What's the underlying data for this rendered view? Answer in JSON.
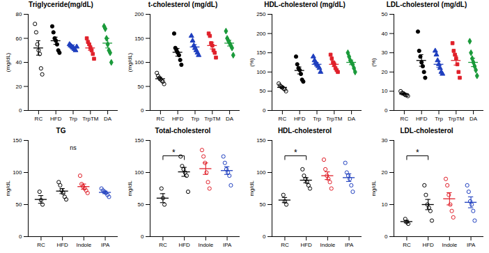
{
  "chart_data": [
    {
      "type": "scatter",
      "title": "Triglyceride(mg/dL)",
      "y_label": "(mg/dL)",
      "categories": [
        "RC",
        "HFD",
        "Trp",
        "TrpTM",
        "DA"
      ],
      "colors": [
        "#000000",
        "#000000",
        "#1f3fbf",
        "#e0202a",
        "#1a9a3a"
      ],
      "markers": [
        "circle-open",
        "circle",
        "triangle",
        "square",
        "diamond"
      ],
      "points": [
        [
          72,
          65,
          55,
          50,
          47,
          35,
          30
        ],
        [
          70,
          65,
          60,
          58,
          55,
          50,
          48
        ],
        [
          55,
          54,
          53,
          52,
          51,
          50,
          53
        ],
        [
          60,
          57,
          55,
          52,
          50,
          47,
          43
        ],
        [
          70,
          68,
          60,
          55,
          50,
          48,
          40
        ]
      ],
      "means": [
        52,
        58,
        53,
        52,
        56
      ],
      "errors": [
        6,
        3,
        1.5,
        2,
        4
      ],
      "ylim": [
        0,
        80
      ],
      "yticks": [
        0,
        20,
        40,
        60,
        80
      ],
      "annotations": []
    },
    {
      "type": "scatter",
      "title": "t-cholesterol (mg/dL)",
      "y_label": "(mg/dL)",
      "categories": [
        "RC",
        "HFD",
        "Trp",
        "TrpTM",
        "DA"
      ],
      "colors": [
        "#000000",
        "#000000",
        "#1f3fbf",
        "#e0202a",
        "#1a9a3a"
      ],
      "markers": [
        "circle-open",
        "circle",
        "triangle",
        "square",
        "diamond"
      ],
      "points": [
        [
          78,
          72,
          68,
          65,
          62,
          60,
          55
        ],
        [
          160,
          130,
          125,
          120,
          115,
          105,
          95
        ],
        [
          155,
          145,
          135,
          130,
          125,
          120,
          115
        ],
        [
          160,
          155,
          140,
          135,
          125,
          120,
          110
        ],
        [
          165,
          150,
          145,
          140,
          135,
          130,
          115
        ]
      ],
      "means": [
        66,
        121,
        132,
        135,
        140
      ],
      "errors": [
        3,
        8,
        5,
        7,
        6
      ],
      "ylim": [
        0,
        200
      ],
      "yticks": [
        0,
        50,
        100,
        150,
        200
      ],
      "annotations": []
    },
    {
      "type": "scatter",
      "title": "HDL-cholesterol (mg/dL)",
      "y_label": "(%)",
      "categories": [
        "RC",
        "HFD",
        "Trp",
        "TrpTM",
        "DA"
      ],
      "colors": [
        "#000000",
        "#000000",
        "#1f3fbf",
        "#e0202a",
        "#1a9a3a"
      ],
      "markers": [
        "circle-open",
        "circle",
        "triangle",
        "square",
        "diamond"
      ],
      "points": [
        [
          70,
          65,
          62,
          60,
          57,
          55,
          50
        ],
        [
          140,
          120,
          110,
          105,
          95,
          80,
          75
        ],
        [
          140,
          130,
          125,
          120,
          115,
          110,
          100
        ],
        [
          145,
          135,
          125,
          120,
          110,
          105,
          100
        ],
        [
          150,
          140,
          130,
          125,
          120,
          110,
          100
        ]
      ],
      "means": [
        60,
        104,
        120,
        120,
        125
      ],
      "errors": [
        3,
        9,
        5,
        6,
        6
      ],
      "ylim": [
        0,
        250
      ],
      "yticks": [
        0,
        50,
        100,
        150,
        200,
        250
      ],
      "annotations": []
    },
    {
      "type": "scatter",
      "title": "LDL-cholesterol (mg/dL)",
      "y_label": "(%)",
      "categories": [
        "RC",
        "HFD",
        "Trp",
        "TrpTM",
        "DA"
      ],
      "colors": [
        "#000000",
        "#000000",
        "#1f3fbf",
        "#e0202a",
        "#1a9a3a"
      ],
      "markers": [
        "circle-open",
        "circle",
        "triangle",
        "square",
        "diamond"
      ],
      "points": [
        [
          10,
          9,
          9,
          8.5,
          8,
          8,
          7.5
        ],
        [
          41,
          31,
          28,
          25,
          23,
          20,
          17
        ],
        [
          31,
          29,
          26,
          24,
          22,
          20,
          19
        ],
        [
          35,
          31,
          29,
          27,
          24,
          20,
          17
        ],
        [
          36,
          30,
          27,
          25,
          23,
          21,
          18
        ]
      ],
      "means": [
        8.6,
        26,
        24,
        26,
        25
      ],
      "errors": [
        0.4,
        3,
        1.6,
        2.4,
        2.2
      ],
      "ylim": [
        0,
        50
      ],
      "yticks": [
        0,
        10,
        20,
        30,
        40,
        50
      ],
      "annotations": []
    },
    {
      "type": "scatter",
      "title": "TG",
      "y_label": "mg/dL",
      "categories": [
        "RC",
        "HFD",
        "Indole",
        "IPA"
      ],
      "colors": [
        "#000000",
        "#000000",
        "#e0202a",
        "#1f3fbf"
      ],
      "markers": [
        "circle-open",
        "circle-open",
        "circle-open",
        "circle-open"
      ],
      "points": [
        [
          70,
          57,
          50
        ],
        [
          85,
          80,
          72,
          68,
          62,
          58
        ],
        [
          95,
          82,
          78,
          75,
          72,
          68
        ],
        [
          75,
          72,
          70,
          68,
          65,
          62
        ]
      ],
      "means": [
        58,
        71,
        78,
        69
      ],
      "errors": [
        6,
        4,
        4,
        2
      ],
      "ylim": [
        0,
        150
      ],
      "yticks": [
        0,
        50,
        100,
        150
      ],
      "annotations": [
        {
          "text": "ns"
        }
      ]
    },
    {
      "type": "scatter",
      "title": "Total-cholesterol",
      "y_label": "mg/dL",
      "categories": [
        "RC",
        "HFD",
        "Indole",
        "IPA"
      ],
      "colors": [
        "#000000",
        "#000000",
        "#e0202a",
        "#1f3fbf"
      ],
      "markers": [
        "circle-open",
        "circle-open",
        "circle-open",
        "circle-open"
      ],
      "points": [
        [
          75,
          60,
          50
        ],
        [
          125,
          110,
          105,
          100,
          95,
          70
        ],
        [
          135,
          125,
          115,
          100,
          85,
          75
        ],
        [
          125,
          115,
          105,
          100,
          95,
          80
        ]
      ],
      "means": [
        60,
        101,
        106,
        103
      ],
      "errors": [
        7,
        7,
        9,
        6
      ],
      "ylim": [
        0,
        150
      ],
      "yticks": [
        0,
        50,
        100,
        150
      ],
      "annotations": [
        {
          "text": "*",
          "from": "RC",
          "to": "HFD"
        }
      ]
    },
    {
      "type": "scatter",
      "title": "HDL-cholesterol",
      "y_label": "mg/dL",
      "categories": [
        "RC",
        "HFD",
        "Indole",
        "IPA"
      ],
      "colors": [
        "#000000",
        "#000000",
        "#e0202a",
        "#1f3fbf"
      ],
      "markers": [
        "circle-open",
        "circle-open",
        "circle-open",
        "circle-open"
      ],
      "points": [
        [
          65,
          55,
          50
        ],
        [
          105,
          95,
          90,
          85,
          80,
          75
        ],
        [
          120,
          105,
          95,
          90,
          85,
          75
        ],
        [
          115,
          100,
          95,
          90,
          80,
          70
        ]
      ],
      "means": [
        57,
        88,
        95,
        92
      ],
      "errors": [
        4,
        4,
        6,
        6
      ],
      "ylim": [
        0,
        150
      ],
      "yticks": [
        0,
        50,
        100,
        150
      ],
      "annotations": [
        {
          "text": "*",
          "from": "RC",
          "to": "HFD"
        }
      ]
    },
    {
      "type": "scatter",
      "title": "LDL-cholesterol",
      "y_label": "mg/dL",
      "categories": [
        "RC",
        "HFD",
        "Indole",
        "IPA"
      ],
      "colors": [
        "#000000",
        "#000000",
        "#e0202a",
        "#1f3fbf"
      ],
      "markers": [
        "circle-open",
        "circle-open",
        "circle-open",
        "circle-open"
      ],
      "points": [
        [
          5.5,
          4.5,
          4
        ],
        [
          16,
          13,
          10,
          9,
          8,
          5
        ],
        [
          18,
          16,
          13,
          10,
          8,
          6
        ],
        [
          16,
          14,
          11,
          10,
          8,
          5
        ]
      ],
      "means": [
        4.7,
        10,
        11.8,
        10.7
      ],
      "errors": [
        0.4,
        1.6,
        1.9,
        1.7
      ],
      "ylim": [
        0,
        30
      ],
      "yticks": [
        0,
        10,
        20,
        30
      ],
      "annotations": [
        {
          "text": "*",
          "from": "RC",
          "to": "HFD"
        }
      ]
    }
  ]
}
